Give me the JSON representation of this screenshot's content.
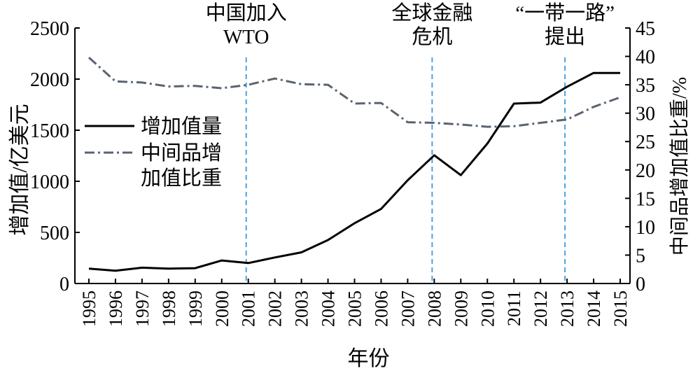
{
  "chart_data": {
    "type": "line",
    "x": [
      "1995",
      "1996",
      "1997",
      "1998",
      "1999",
      "2000",
      "2001",
      "2002",
      "2003",
      "2004",
      "2005",
      "2006",
      "2007",
      "2008",
      "2009",
      "2010",
      "2011",
      "2012",
      "2013",
      "2014",
      "2015"
    ],
    "series": [
      {
        "name": "增加值量",
        "axis": "left",
        "style": "solid",
        "color": "#000000",
        "values": [
          145,
          125,
          155,
          145,
          150,
          225,
          200,
          255,
          305,
          425,
          590,
          730,
          1010,
          1255,
          1060,
          1370,
          1760,
          1770,
          1925,
          2060,
          2060
        ]
      },
      {
        "name": "中间品增加值比重",
        "name_lines": [
          "中间品增",
          "加值比重"
        ],
        "axis": "right",
        "style": "dash-dot",
        "color": "#5a6470",
        "values": [
          39.8,
          35.6,
          35.4,
          34.7,
          34.8,
          34.4,
          35.0,
          36.1,
          35.1,
          35.0,
          31.7,
          31.8,
          28.4,
          28.3,
          28.0,
          27.6,
          27.7,
          28.3,
          28.9,
          31.1,
          32.8
        ]
      }
    ],
    "ylabel_left": "增加值/亿美元",
    "ylabel_right": "中间品增加值比重/%",
    "xlabel": "年份",
    "ylim_left": [
      0,
      2500
    ],
    "yticks_left": [
      0,
      500,
      1000,
      1500,
      2000,
      2500
    ],
    "ylim_right": [
      0,
      45
    ],
    "yticks_right": [
      0,
      5,
      10,
      15,
      20,
      25,
      30,
      35,
      40,
      45
    ],
    "legend_position": "middle-left",
    "grid": false,
    "annotations": [
      {
        "x": "2001",
        "lines": [
          "中国加入",
          "WTO"
        ],
        "color": "#4aa3e0"
      },
      {
        "x": "2008",
        "lines": [
          "全球金融",
          "危机"
        ],
        "color": "#4aa3e0"
      },
      {
        "x": "2013",
        "lines": [
          "“一带一路”",
          "提出"
        ],
        "color": "#4aa3e0"
      }
    ]
  }
}
